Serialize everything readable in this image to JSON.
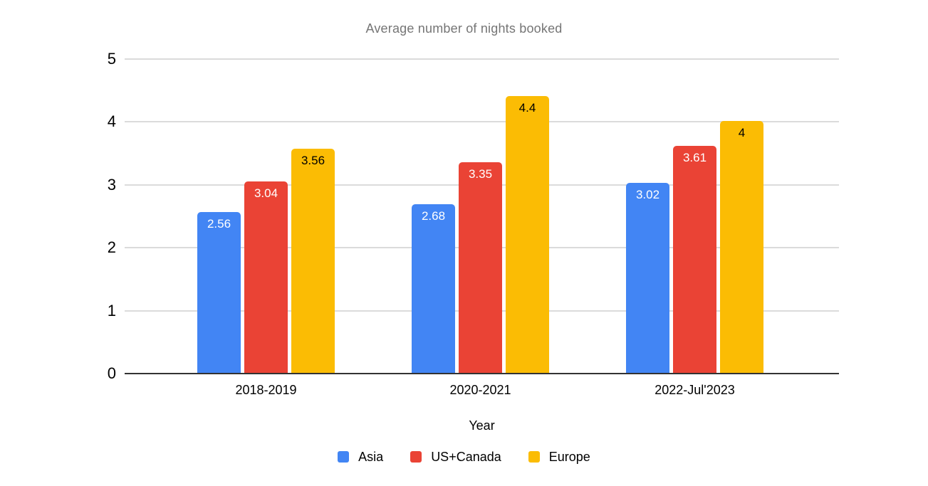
{
  "chart_data": {
    "type": "bar",
    "title": "Average number of nights booked",
    "xlabel": "Year",
    "ylabel": "",
    "categories": [
      "2018-2019",
      "2020-2021",
      "2022-Jul'2023"
    ],
    "series": [
      {
        "name": "Asia",
        "color": "#4285F4",
        "label_color": "#FFFFFF",
        "values": [
          2.56,
          2.68,
          3.02
        ]
      },
      {
        "name": "US+Canada",
        "color": "#EA4335",
        "label_color": "#FFFFFF",
        "values": [
          3.04,
          3.35,
          3.61
        ]
      },
      {
        "name": "Europe",
        "color": "#FBBC04",
        "label_color": "#000000",
        "values": [
          3.56,
          4.4,
          4
        ]
      }
    ],
    "y_ticks": [
      0,
      1,
      2,
      3,
      4,
      5
    ],
    "ylim": [
      0,
      5
    ],
    "grid": true,
    "legend_position": "bottom",
    "title_color": "#757575",
    "gridline_color": "#DBDBDB",
    "axis_line_color": "#333333",
    "background_color": "#FFFFFF"
  }
}
